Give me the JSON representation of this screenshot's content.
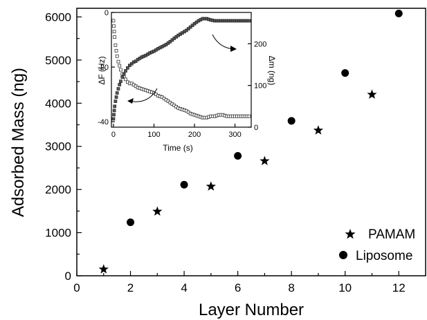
{
  "chart_data": [
    {
      "type": "scatter",
      "xlabel": "Layer Number",
      "ylabel": "Adsorbed Mass (ng)",
      "xlim": [
        0,
        13
      ],
      "ylim": [
        0,
        6200
      ],
      "xticks": [
        "0",
        "2",
        "4",
        "6",
        "8",
        "10",
        "12"
      ],
      "yticks": [
        "0",
        "1000",
        "2000",
        "3000",
        "4000",
        "5000",
        "6000"
      ],
      "legend_position": "bottom-right",
      "series": [
        {
          "name": "PAMAM",
          "marker": "star",
          "x": [
            1,
            3,
            5,
            7,
            9,
            11
          ],
          "y": [
            150,
            1490,
            2070,
            2660,
            3370,
            4200
          ]
        },
        {
          "name": "Liposome",
          "marker": "circle",
          "x": [
            2,
            4,
            6,
            8,
            10,
            12
          ],
          "y": [
            1240,
            2110,
            2780,
            3590,
            4700,
            6080
          ]
        }
      ]
    },
    {
      "type": "line",
      "xlabel": "Time (s)",
      "ylabel": "ΔF (Hz)",
      "y2label": "Δm (ng)",
      "xlim": [
        -5,
        340
      ],
      "ylim": [
        -42,
        0
      ],
      "y2lim": [
        0,
        275
      ],
      "xticks": [
        "0",
        "100",
        "200",
        "300"
      ],
      "yticks": [
        "0",
        "-20",
        "-40"
      ],
      "y2ticks": [
        "0",
        "100",
        "200"
      ],
      "series": [
        {
          "axis": "left",
          "marker": "open-square",
          "t": [
            0,
            1,
            2,
            3,
            5,
            7,
            9,
            12,
            15,
            18,
            22,
            26,
            30,
            35,
            40,
            45,
            50,
            55,
            60,
            70,
            80,
            90,
            100,
            110,
            120,
            130,
            140,
            150,
            160,
            170,
            180,
            190,
            200,
            210,
            220,
            230,
            240,
            250,
            260,
            270,
            280,
            290,
            300,
            310,
            320,
            330,
            340
          ],
          "y": [
            -3,
            -5,
            -7,
            -9,
            -12,
            -14,
            -16,
            -18,
            -19.5,
            -21,
            -22.5,
            -23.5,
            -24.5,
            -25.5,
            -26,
            -26,
            -26.5,
            -27,
            -27.5,
            -28,
            -28.5,
            -29,
            -29.5,
            -30.5,
            -31,
            -32,
            -33,
            -34,
            -35,
            -35.5,
            -36,
            -37,
            -37.5,
            -38,
            -38.5,
            -38.5,
            -38,
            -38,
            -37.5,
            -37.5,
            -38,
            -38,
            -38,
            -38,
            -38,
            -38,
            -38
          ]
        },
        {
          "axis": "right",
          "marker": "filled-square",
          "t": [
            0,
            1,
            2,
            3,
            5,
            7,
            9,
            12,
            15,
            18,
            22,
            26,
            30,
            35,
            40,
            45,
            50,
            55,
            60,
            70,
            80,
            90,
            100,
            110,
            120,
            130,
            140,
            150,
            160,
            170,
            180,
            190,
            200,
            210,
            220,
            230,
            240,
            250,
            260,
            270,
            280,
            290,
            300,
            310,
            320,
            330,
            340
          ],
          "y": [
            20,
            30,
            40,
            50,
            62,
            72,
            82,
            92,
            102,
            110,
            120,
            127,
            135,
            142,
            148,
            152,
            156,
            158,
            162,
            168,
            172,
            178,
            182,
            188,
            193,
            198,
            205,
            213,
            220,
            226,
            232,
            240,
            248,
            255,
            260,
            260,
            257,
            255,
            255,
            255,
            255,
            255,
            255,
            255,
            255,
            255,
            255
          ]
        }
      ]
    }
  ]
}
